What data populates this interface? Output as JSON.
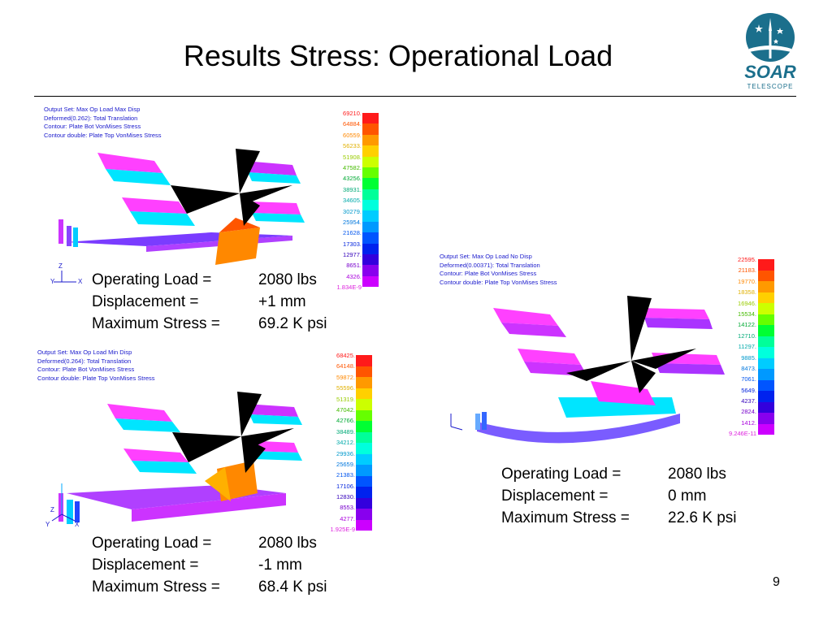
{
  "slide": {
    "title": "Results Stress: Operational Load",
    "page_number": "9"
  },
  "logo": {
    "word": "SOAR",
    "sub": "TELESCOPE"
  },
  "plots": [
    {
      "info": [
        "Output Set: Max Op Load Max Disp",
        "Deformed(0.262): Total Translation",
        "Contour: Plate Bot VonMises Stress",
        "Contour double: Plate Top VonMises Stress"
      ],
      "scale": [
        "69210.",
        "64884.",
        "60559.",
        "56233.",
        "51908.",
        "47582.",
        "43256.",
        "38931.",
        "34605.",
        "30279.",
        "25954.",
        "21628.",
        "17303.",
        "12977.",
        "8651.",
        "4326.",
        "1.834E-9"
      ],
      "caption": {
        "load_label": "Operating Load =",
        "load_value": "2080 lbs",
        "disp_label": "Displacement =",
        "disp_value": "+1 mm",
        "stress_label": "Maximum Stress =",
        "stress_value": "69.2 K psi"
      }
    },
    {
      "info": [
        "Output Set: Max Op Load Min Disp",
        "Deformed(0.264): Total Translation",
        "Contour: Plate Bot VonMises Stress",
        "Contour double: Plate Top VonMises Stress"
      ],
      "scale": [
        "68425.",
        "64148.",
        "59872.",
        "55596.",
        "51319.",
        "47042.",
        "42766.",
        "38489.",
        "34212.",
        "29936.",
        "25659.",
        "21383.",
        "17106.",
        "12830.",
        "8553.",
        "4277.",
        "1.925E-9"
      ],
      "caption": {
        "load_label": "Operating Load =",
        "load_value": "2080 lbs",
        "disp_label": "Displacement =",
        "disp_value": "-1 mm",
        "stress_label": "Maximum Stress =",
        "stress_value": "68.4 K psi"
      }
    },
    {
      "info": [
        "Output Set: Max Op Load No Disp",
        "Deformed(0.00371): Total Translation",
        "Contour: Plate Bot VonMises Stress",
        "Contour double: Plate Top VonMises Stress"
      ],
      "scale": [
        "22595.",
        "21183.",
        "19770.",
        "18358.",
        "16946.",
        "15534.",
        "14122.",
        "12710.",
        "11297.",
        "9885.",
        "8473.",
        "7061.",
        "5649.",
        "4237.",
        "2824.",
        "1412.",
        "9.246E-11"
      ],
      "caption": {
        "load_label": "Operating Load =",
        "load_value": "2080 lbs",
        "disp_label": "Displacement =",
        "disp_value": "0 mm",
        "stress_label": "Maximum Stress =",
        "stress_value": "22.6 K psi"
      }
    }
  ],
  "axis_labels": {
    "z": "Z",
    "y": "Y",
    "x": "X"
  },
  "colors": {
    "scale": [
      "#ff1a1a",
      "#ff5500",
      "#ff9900",
      "#ffd000",
      "#ccff00",
      "#66ff00",
      "#00ff33",
      "#00ff99",
      "#00ffdd",
      "#00ccff",
      "#0099ff",
      "#0055ff",
      "#0022ee",
      "#3300dd",
      "#8800ee",
      "#cc00ff",
      "#ff33ff"
    ],
    "scale_text": [
      "#ff1a1a",
      "#ff5500",
      "#ff8800",
      "#e0b000",
      "#99cc00",
      "#44bb00",
      "#00aa33",
      "#00aa77",
      "#00aaaa",
      "#0099cc",
      "#0077dd",
      "#0055ee",
      "#0022dd",
      "#3300bb",
      "#7700cc",
      "#aa00dd",
      "#dd22dd"
    ]
  }
}
